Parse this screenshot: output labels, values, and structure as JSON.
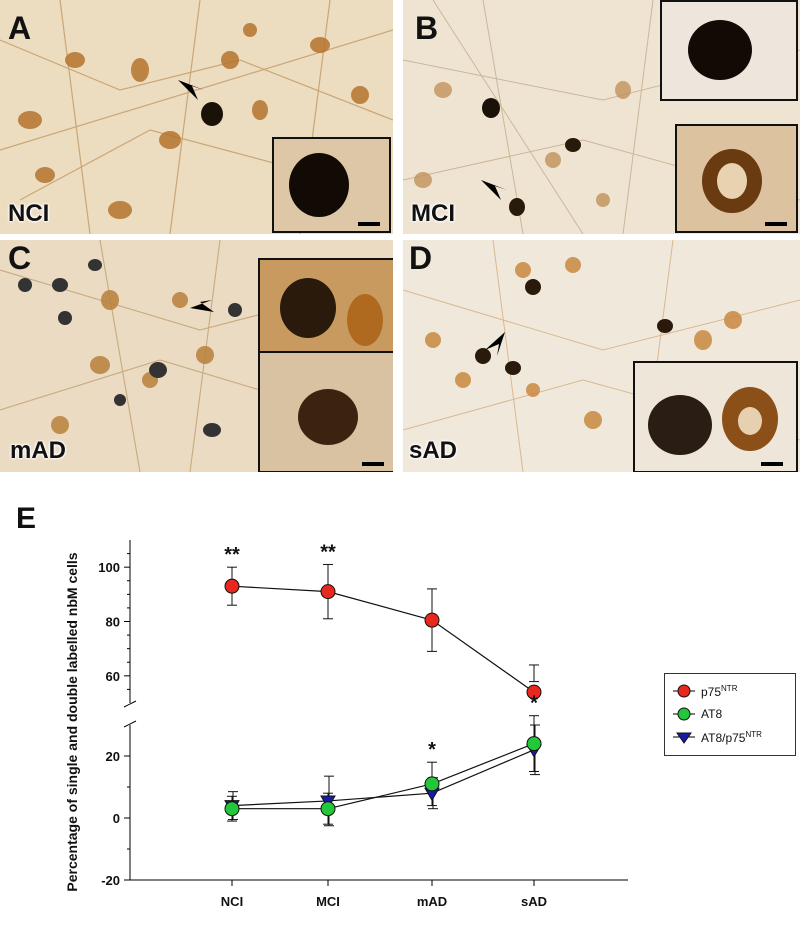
{
  "panels": [
    {
      "letter": "A",
      "group": "NCI"
    },
    {
      "letter": "B",
      "group": "MCI"
    },
    {
      "letter": "C",
      "group": "mAD"
    },
    {
      "letter": "D",
      "group": "sAD"
    }
  ],
  "chart_panel_letter": "E",
  "chart_data": {
    "type": "line",
    "ylabel": "Percentage of single and double labelled nbM cells",
    "xlabel": "",
    "categories": [
      "NCI",
      "MCI",
      "mAD",
      "sAD"
    ],
    "y_ticks": [
      -20,
      0,
      20,
      60,
      80,
      100
    ],
    "axis_break": [
      30,
      50
    ],
    "series": [
      {
        "name": "p75",
        "name_sup": "NTR",
        "color": "#e8281e",
        "marker": "circle",
        "values": [
          93,
          91,
          80.5,
          54
        ],
        "err": [
          7,
          10,
          11.5,
          10
        ]
      },
      {
        "name": "AT8",
        "name_sup": "",
        "color": "#22c83a",
        "marker": "circle",
        "values": [
          3,
          3,
          11,
          24
        ],
        "err": [
          4,
          5,
          7,
          9
        ]
      },
      {
        "name": "AT8/p75",
        "name_sup": "NTR",
        "color": "#1a1aa8",
        "marker": "triangle-down",
        "values": [
          4,
          5.5,
          8,
          22
        ],
        "err": [
          4.5,
          8,
          5,
          8
        ]
      }
    ],
    "annotations": [
      {
        "category": "NCI",
        "text": "**",
        "series": "p75"
      },
      {
        "category": "MCI",
        "text": "**",
        "series": "p75"
      },
      {
        "category": "mAD",
        "text": "*",
        "series": "AT8"
      },
      {
        "category": "sAD",
        "text": "*",
        "series": "AT8"
      }
    ]
  }
}
